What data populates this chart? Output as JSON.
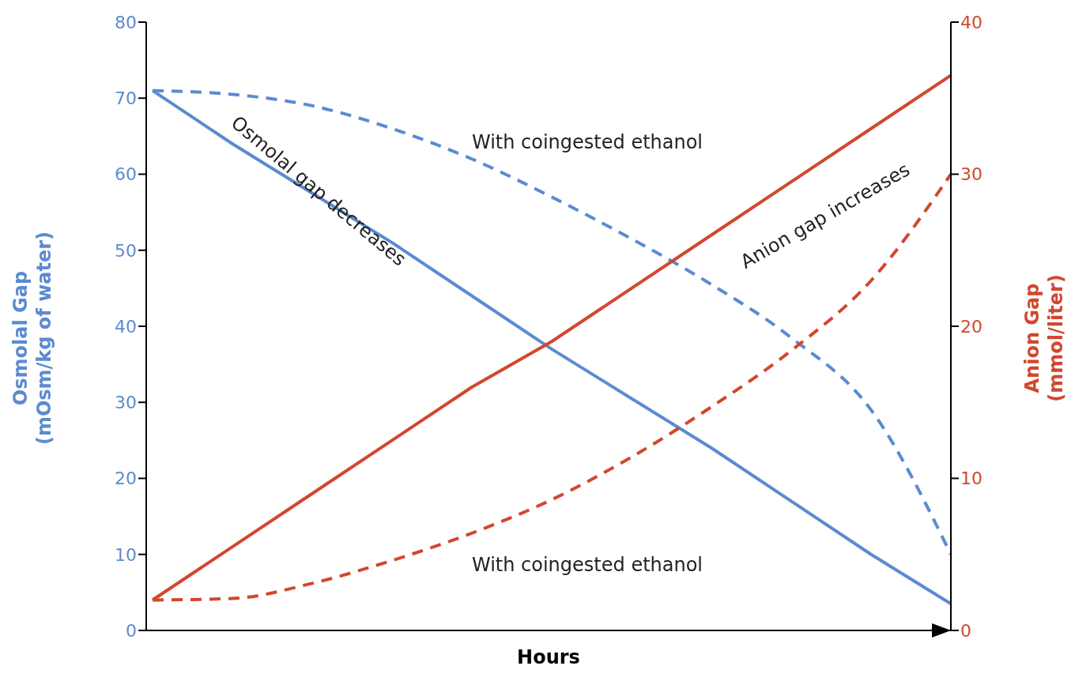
{
  "chart_data": {
    "type": "line",
    "xlabel": "Hours",
    "ylabel": "Osmolal Gap (mOsm/kg of water)",
    "y2label": "Anion Gap (mmol/liter)",
    "categories": [
      null,
      null,
      null,
      null,
      null,
      null,
      null,
      null,
      null,
      null,
      null
    ],
    "series": [
      {
        "color": "#5b8bd0",
        "line_style": "solid",
        "values": [
          71,
          64,
          57.5,
          51,
          44,
          37,
          30.5,
          24,
          17,
          10,
          3.5
        ]
      },
      {
        "color": "#5b8bd0",
        "line_style": "dashed",
        "values": [
          71,
          70.5,
          69,
          66,
          62,
          57,
          51.5,
          45.5,
          38.5,
          29,
          10
        ]
      },
      {
        "color": "#d2472e",
        "line_style": "solid",
        "axis": "y2",
        "values": [
          2,
          5.5,
          9,
          12.5,
          16,
          19,
          22.5,
          26,
          29.5,
          33,
          36.5
        ]
      },
      {
        "color": "#d2472e",
        "line_style": "dashed",
        "axis": "y2",
        "values": [
          2,
          2.1,
          3.1,
          4.6,
          6.4,
          8.6,
          11.4,
          14.7,
          18.4,
          23,
          30
        ]
      }
    ],
    "ylim": [
      0,
      80
    ],
    "yticks": [
      0,
      10,
      20,
      30,
      40,
      50,
      60,
      70,
      80
    ],
    "y2lim": [
      0,
      40
    ],
    "y2ticks": [
      0,
      10,
      20,
      30,
      40
    ],
    "annotations": [
      "Osmolal gap decreases",
      "With coingested ethanol",
      "Anion gap increases",
      "With coingested ethanol"
    ],
    "grid": false,
    "marker": "none"
  }
}
